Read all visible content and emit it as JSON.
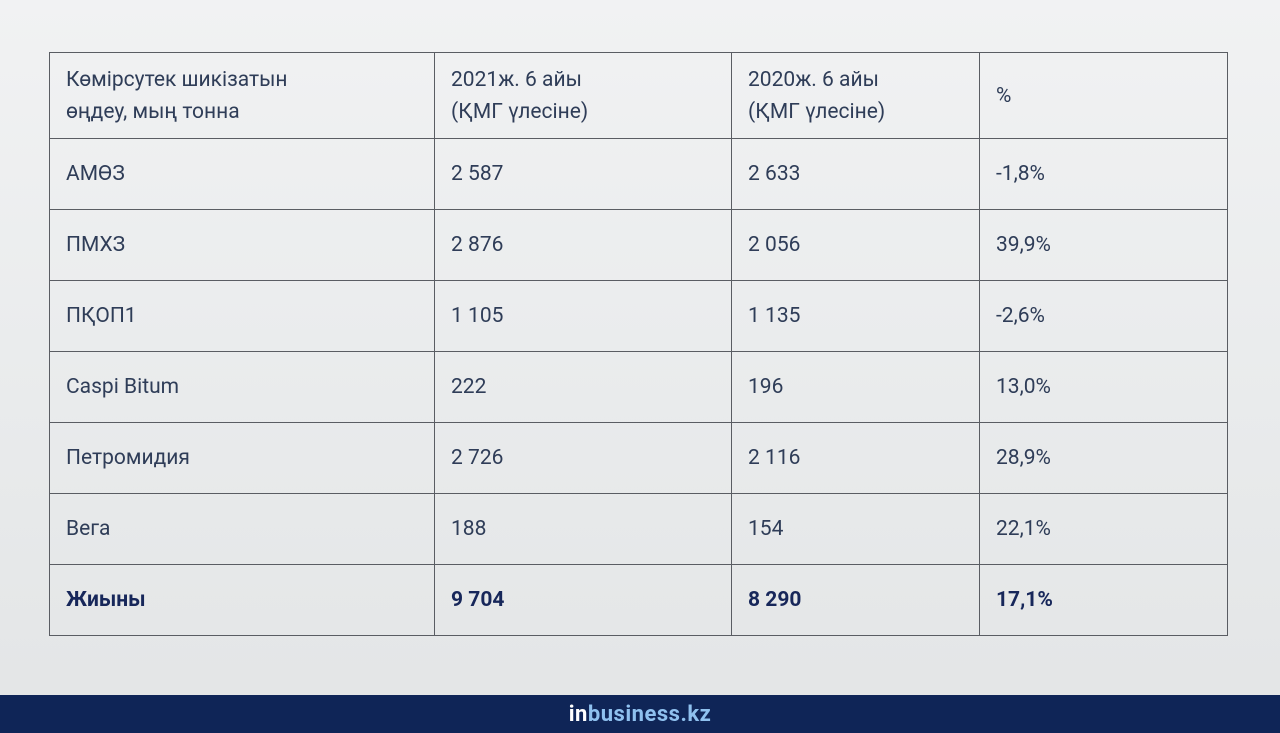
{
  "table": {
    "header": [
      "Көмірсутек шикізатын\nөңдеу, мың тонна",
      "2021ж. 6 айы\n(ҚМГ үлесіне)",
      " 2020ж. 6 айы\n(ҚМГ үлесіне)",
      "%"
    ],
    "rows": [
      [
        "АМӨЗ",
        "2 587",
        "2 633",
        "-1,8%"
      ],
      [
        "ПМХЗ",
        "2 876",
        "2 056",
        "39,9%"
      ],
      [
        "ПҚОП1",
        "1 105",
        "1 135",
        "-2,6%"
      ],
      [
        "Caspi Bitum",
        "222",
        "196",
        "13,0%"
      ],
      [
        "Петромидия",
        "2 726",
        "2 116",
        "28,9%"
      ],
      [
        "Вега",
        "188",
        "154",
        "22,1%"
      ],
      [
        "Жиыны",
        "9 704",
        "8 290",
        "17,1%"
      ]
    ]
  },
  "footer": {
    "brand_prefix": "in",
    "brand_name": "business.kz"
  }
}
